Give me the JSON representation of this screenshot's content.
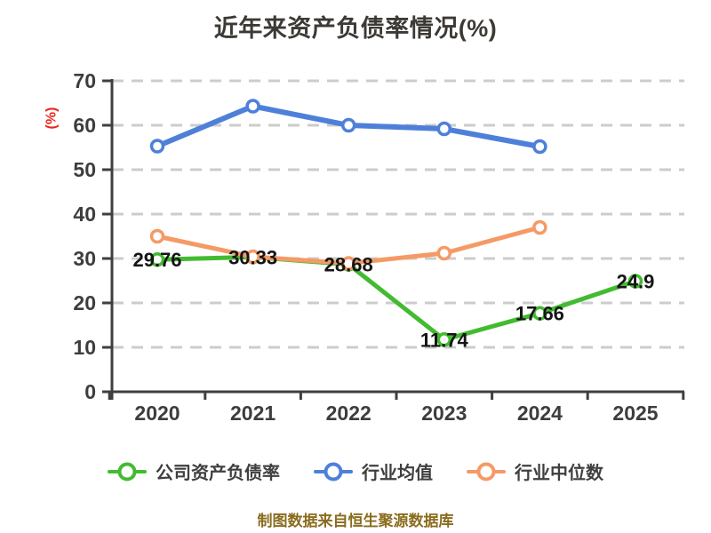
{
  "source_note": "制图数据来自恒生聚源数据库",
  "colors": {
    "company": "#43bb31",
    "industry_avg": "#4e80d9",
    "industry_median": "#f59a66",
    "grid": "#cccccc",
    "axis": "#3f3f3f",
    "tick_label": "#3d3d3d",
    "data_label": "#151515",
    "title_text": "#3d3935",
    "ylabel_text": "#e8271c",
    "legend_text": "#3f3f3f",
    "source_text": "#8a6c1e",
    "marker_fill": "#ffffff"
  },
  "chart_data": {
    "type": "line",
    "title": "近年来资产负债率情况(%)",
    "ylabel": "(%)",
    "xlabel": "",
    "x": [
      "2020",
      "2021",
      "2022",
      "2023",
      "2024",
      "2025"
    ],
    "series": [
      {
        "name": "公司资产负债率",
        "color_key": "company",
        "values": [
          29.76,
          30.33,
          28.68,
          11.74,
          17.66,
          24.9
        ],
        "labels_shown": true
      },
      {
        "name": "行业均值",
        "color_key": "industry_avg",
        "values": [
          55.3,
          64.3,
          60.0,
          59.2,
          55.2,
          null
        ],
        "labels_shown": false
      },
      {
        "name": "行业中位数",
        "color_key": "industry_median",
        "values": [
          35.0,
          30.4,
          28.9,
          31.2,
          37.0,
          null
        ],
        "labels_shown": false
      }
    ],
    "ylim": [
      0,
      70
    ],
    "y_ticks": [
      0,
      10,
      20,
      30,
      40,
      50,
      60,
      70
    ],
    "grid": "dashed-horizontal",
    "legend_position": "bottom"
  }
}
